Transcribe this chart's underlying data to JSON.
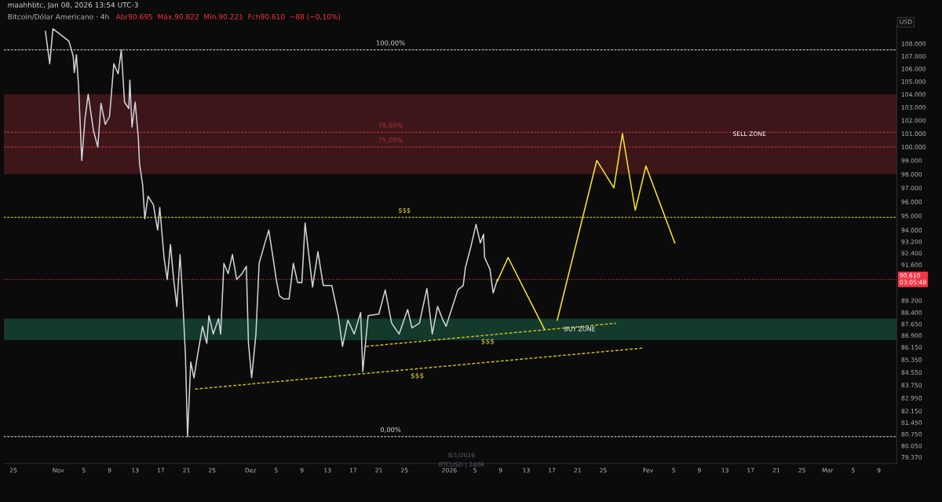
{
  "chart_data": {
    "type": "line",
    "title": "Bitcoin/Dólar Americano · 4h",
    "subtitle": "Abr90.695  Máx.90.822  Mín.90.221  Fch90.610  −88 (−0,10%)",
    "ylabel": "USD",
    "annotations": [
      "maahhbtc, Jan 08, 2026 13:54 UTC-3",
      "8/1/2026",
      "BTCUSD | 240R",
      {
        "text": "100,00%",
        "x": "2025-12-22T20:00",
        "y": 107500
      },
      {
        "text": "78,60%",
        "x": "2025-12-22T20:00",
        "y": 101100
      },
      {
        "text": "75,00%",
        "x": "2025-12-22T20:00",
        "y": 100000
      },
      {
        "text": "0,00%",
        "x": "2025-12-22T20:00",
        "y": 80600
      },
      {
        "text": "$$$",
        "x": "2025-12-25",
        "y": 94900
      },
      {
        "text": "$$$",
        "x": "2026-01-07",
        "y": 87000
      },
      {
        "text": "$$$",
        "x": "2025-12-27",
        "y": 84800
      }
    ],
    "series": [
      {
        "color": "#d1d4dc",
        "line_style": "solid",
        "x": [
          "2025-10-30T00:00",
          "2025-10-30T16:00",
          "2025-10-31T04:00",
          "2025-11-02T16:00",
          "2025-11-03T08:00",
          "2025-11-03T12:00",
          "2025-11-03T20:00",
          "2025-11-04T04:00",
          "2025-11-04T16:00",
          "2025-11-05T04:00",
          "2025-11-05T16:00",
          "2025-11-06T12:00",
          "2025-11-07T04:00",
          "2025-11-07T16:00",
          "2025-11-08T08:00",
          "2025-11-09T00:00",
          "2025-11-09T16:00",
          "2025-11-10T08:00",
          "2025-11-10T20:00",
          "2025-11-11T08:00",
          "2025-11-12T00:00",
          "2025-11-12T04:00",
          "2025-11-12T12:00",
          "2025-11-13T00:00",
          "2025-11-13T12:00",
          "2025-11-13T16:00",
          "2025-11-14T04:00",
          "2025-11-14T12:00",
          "2025-11-15T00:00",
          "2025-11-15T20:00",
          "2025-11-16T12:00",
          "2025-11-16T20:00",
          "2025-11-17T12:00",
          "2025-11-18T00:00",
          "2025-11-18T12:00",
          "2025-11-19T00:00",
          "2025-11-19T12:00",
          "2025-11-20T00:00",
          "2025-11-20T08:00",
          "2025-11-20T20:00",
          "2025-11-21T04:00",
          "2025-11-21T16:00",
          "2025-11-22T04:00",
          "2025-11-22T16:00",
          "2025-11-23T12:00",
          "2025-11-24T04:00",
          "2025-11-24T12:00",
          "2025-11-25T04:00",
          "2025-11-26T00:00",
          "2025-11-26T08:00",
          "2025-11-26T20:00",
          "2025-11-27T12:00",
          "2025-11-28T04:00",
          "2025-11-28T20:00",
          "2025-11-29T16:00",
          "2025-11-30T08:00",
          "2025-11-30T16:00",
          "2025-12-01T04:00",
          "2025-12-01T20:00",
          "2025-12-02T08:00",
          "2025-12-03T04:00",
          "2025-12-03T20:00",
          "2025-12-04T12:00",
          "2025-12-05T00:00",
          "2025-12-05T12:00",
          "2025-12-06T04:00",
          "2025-12-07T00:00",
          "2025-12-07T16:00",
          "2025-12-08T08:00",
          "2025-12-09T00:00",
          "2025-12-09T12:00",
          "2025-12-10T16:00",
          "2025-12-11T12:00",
          "2025-12-12T08:00",
          "2025-12-13T16:00",
          "2025-12-14T16:00",
          "2025-12-15T08:00",
          "2025-12-16T04:00",
          "2025-12-17T04:00",
          "2025-12-18T04:00",
          "2025-12-18T12:00",
          "2025-12-19T08:00",
          "2025-12-21T00:00",
          "2025-12-22T00:00",
          "2025-12-23T00:00",
          "2025-12-24T04:00",
          "2025-12-25T12:00",
          "2025-12-26T04:00",
          "2025-12-27T08:00",
          "2025-12-28T12:00",
          "2025-12-29T08:00",
          "2025-12-30T04:00",
          "2025-12-31T00:00",
          "2025-12-31T12:00",
          "2026-01-01T08:00",
          "2026-01-02T08:00",
          "2026-01-03T04:00",
          "2026-01-03T12:00",
          "2026-01-04T08:00",
          "2026-01-05T04:00",
          "2026-01-05T20:00",
          "2026-01-06T08:00",
          "2026-01-06T12:00",
          "2026-01-07T08:00",
          "2026-01-07T20:00",
          "2026-01-08T12:00"
        ],
        "values": [
          109000,
          106400,
          109200,
          108200,
          107000,
          105700,
          107100,
          104600,
          99000,
          102100,
          104000,
          101200,
          100000,
          103300,
          101700,
          102300,
          106400,
          105600,
          107500,
          103400,
          102900,
          105100,
          101500,
          103400,
          100600,
          98800,
          97200,
          94800,
          96400,
          95800,
          94000,
          95600,
          92100,
          90600,
          93000,
          90600,
          88800,
          92300,
          89900,
          85700,
          80600,
          85200,
          84200,
          85500,
          87500,
          86400,
          88200,
          87000,
          88000,
          87000,
          91700,
          91000,
          92300,
          90600,
          91000,
          91500,
          86400,
          84200,
          87000,
          91700,
          93000,
          94000,
          92100,
          90600,
          89500,
          89300,
          89300,
          91700,
          90400,
          90400,
          94500,
          90100,
          92500,
          90200,
          90200,
          88200,
          86200,
          87900,
          87000,
          88400,
          84600,
          88200,
          88300,
          89900,
          87700,
          87000,
          88600,
          87400,
          87700,
          90000,
          87000,
          88800,
          87900,
          87500,
          88600,
          89900,
          90200,
          91400,
          92800,
          94400,
          93100,
          93700,
          92100,
          91300,
          89700,
          90600
        ]
      },
      {
        "color": "#c9b627",
        "line_style": "dashed",
        "x": [
          "2025-11-22T08:00",
          "2026-01-31T08:00"
        ],
        "values": [
          83500,
          86100
        ]
      },
      {
        "color": "#c9b627",
        "line_style": "dashed",
        "x": [
          "2025-12-19T00:00",
          "2026-01-27T00:00"
        ],
        "values": [
          86200,
          87700
        ]
      },
      {
        "color": "#f7e82a",
        "line_style": "solid",
        "x": [
          "2026-01-08T12:00",
          "2026-01-10T04:00",
          "2026-01-15T20:00"
        ],
        "values": [
          90500,
          92100,
          87300
        ]
      },
      {
        "color": "#f7e82a",
        "line_style": "solid",
        "x": [
          "2026-01-17T20:00",
          "2026-01-24T00:00",
          "2026-01-26T16:00",
          "2026-01-28T00:00",
          "2026-01-30T00:00",
          "2026-01-31T16:00",
          "2026-02-05T04:00"
        ],
        "values": [
          87900,
          99000,
          97000,
          101000,
          95400,
          98600,
          93100
        ]
      }
    ],
    "ref_lines": [
      {
        "axis": "y",
        "value": 107500,
        "label": null,
        "color": "#d9d9d9",
        "line_style": "dashed"
      },
      {
        "axis": "y",
        "value": 101100,
        "label": null,
        "color": "#b2303a",
        "line_style": "dashed"
      },
      {
        "axis": "y",
        "value": 100000,
        "label": null,
        "color": "#b2303a",
        "line_style": "dashed"
      },
      {
        "axis": "y",
        "value": 80600,
        "label": null,
        "color": "#d9d9d9",
        "line_style": "dashed"
      },
      {
        "axis": "y",
        "value": 94900,
        "label": null,
        "color": "#c9b627",
        "line_style": "dashed"
      },
      {
        "axis": "y",
        "value": 90610,
        "label": "90.610\n03:05:49",
        "color": "#f23645",
        "line_style": "dotted"
      }
    ],
    "bands": [
      {
        "axis": "y",
        "from": 98000,
        "to": 104000,
        "label": "SELL ZONE",
        "color": "#3d1619"
      },
      {
        "axis": "y",
        "from": 86600,
        "to": 88000,
        "label": "BUY ZONE",
        "color": "#143a2c"
      }
    ],
    "log": true,
    "xlim": [
      "2025-10-23T12:00",
      "2026-03-11T19:00"
    ],
    "xticks": [
      {
        "value": "2025-10-25",
        "label": "25"
      },
      {
        "value": "2025-11-01",
        "label": "Nov"
      },
      {
        "value": "2025-11-05",
        "label": "5"
      },
      {
        "value": "2025-11-09",
        "label": "9"
      },
      {
        "value": "2025-11-13",
        "label": "13"
      },
      {
        "value": "2025-11-17",
        "label": "17"
      },
      {
        "value": "2025-11-21",
        "label": "21"
      },
      {
        "value": "2025-11-25",
        "label": "25"
      },
      {
        "value": "2025-12-01",
        "label": "Dez"
      },
      {
        "value": "2025-12-05",
        "label": "5"
      },
      {
        "value": "2025-12-09",
        "label": "9"
      },
      {
        "value": "2025-12-13",
        "label": "13"
      },
      {
        "value": "2025-12-17",
        "label": "17"
      },
      {
        "value": "2025-12-21",
        "label": "21"
      },
      {
        "value": "2025-12-25",
        "label": "25"
      },
      {
        "value": "2026-01-01",
        "label": "2026"
      },
      {
        "value": "2026-01-05",
        "label": "5"
      },
      {
        "value": "2026-01-09",
        "label": "9"
      },
      {
        "value": "2026-01-13",
        "label": "13"
      },
      {
        "value": "2026-01-17",
        "label": "17"
      },
      {
        "value": "2026-01-21",
        "label": "21"
      },
      {
        "value": "2026-01-25",
        "label": "25"
      },
      {
        "value": "2026-02-01",
        "label": "Fev"
      },
      {
        "value": "2026-02-05",
        "label": "5"
      },
      {
        "value": "2026-02-09",
        "label": "9"
      },
      {
        "value": "2026-02-13",
        "label": "13"
      },
      {
        "value": "2026-02-17",
        "label": "17"
      },
      {
        "value": "2026-02-21",
        "label": "21"
      },
      {
        "value": "2026-02-25",
        "label": "25"
      },
      {
        "value": "2026-03-01",
        "label": "Mar"
      },
      {
        "value": "2026-03-05",
        "label": "5"
      },
      {
        "value": "2026-03-09",
        "label": "9"
      }
    ],
    "ylim": [
      79000,
      109500
    ],
    "yticks": [
      {
        "value": 108000,
        "label": "108.000"
      },
      {
        "value": 107000,
        "label": "107.000"
      },
      {
        "value": 106000,
        "label": "106.000"
      },
      {
        "value": 105000,
        "label": "105.000"
      },
      {
        "value": 104000,
        "label": "104.000"
      },
      {
        "value": 103000,
        "label": "103.000"
      },
      {
        "value": 102000,
        "label": "102.000"
      },
      {
        "value": 101000,
        "label": "101.000"
      },
      {
        "value": 100000,
        "label": "100.000"
      },
      {
        "value": 99000,
        "label": "99.000"
      },
      {
        "value": 98000,
        "label": "98.000"
      },
      {
        "value": 97000,
        "label": "97.000"
      },
      {
        "value": 96000,
        "label": "96.000"
      },
      {
        "value": 95000,
        "label": "95.000"
      },
      {
        "value": 94000,
        "label": "94.000"
      },
      {
        "value": 93200,
        "label": "93.200"
      },
      {
        "value": 92400,
        "label": "92.400"
      },
      {
        "value": 91600,
        "label": "91.600"
      },
      {
        "value": 89200,
        "label": "89.200"
      },
      {
        "value": 88400,
        "label": "88.400"
      },
      {
        "value": 87650,
        "label": "87.650"
      },
      {
        "value": 86900,
        "label": "86.900"
      },
      {
        "value": 86150,
        "label": "86.150"
      },
      {
        "value": 85350,
        "label": "85.350"
      },
      {
        "value": 84550,
        "label": "84.550"
      },
      {
        "value": 83750,
        "label": "83.750"
      },
      {
        "value": 82950,
        "label": "82.950"
      },
      {
        "value": 82150,
        "label": "82.150"
      },
      {
        "value": 81450,
        "label": "81.450"
      },
      {
        "value": 80750,
        "label": "80.750"
      },
      {
        "value": 80050,
        "label": "80.050"
      },
      {
        "value": 79370,
        "label": "79.370"
      }
    ],
    "grid": false,
    "marker": "none"
  }
}
